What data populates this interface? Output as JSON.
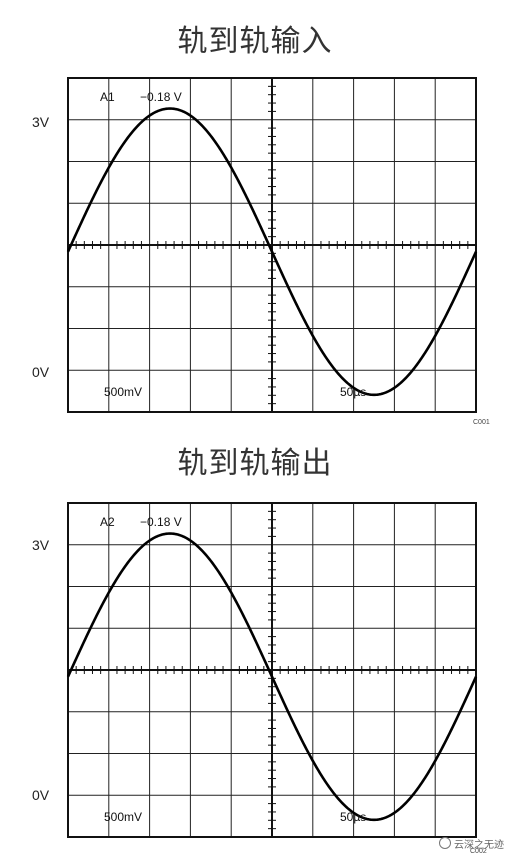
{
  "chart_data": [
    {
      "type": "line",
      "title": "轨到轨输入",
      "channel_label": "A1",
      "offset_label": "−0.18 V",
      "volts_per_div": "500mV",
      "time_per_div": "50µs",
      "y_tick_labels": {
        "top": "3V",
        "bottom": "0V"
      },
      "figure_code": "C001",
      "xlim": [
        0,
        500
      ],
      "ylim": [
        -0.18,
        3.32
      ],
      "grid": true,
      "series": [
        {
          "waveform": "sine",
          "x_start": 0,
          "x_end": 500,
          "y_min": 0,
          "y_max": 3.0,
          "period": 500,
          "phase_deg": 0
        }
      ]
    },
    {
      "type": "line",
      "title": "轨到轨输出",
      "channel_label": "A2",
      "offset_label": "−0.18 V",
      "volts_per_div": "500mV",
      "time_per_div": "50µs",
      "y_tick_labels": {
        "top": "3V",
        "bottom": "0V"
      },
      "figure_code": "C002",
      "xlim": [
        0,
        500
      ],
      "ylim": [
        -0.18,
        3.32
      ],
      "grid": true,
      "series": [
        {
          "waveform": "sine",
          "x_start": 0,
          "x_end": 500,
          "y_min": 0,
          "y_max": 3.0,
          "period": 500,
          "phase_deg": 0
        }
      ]
    }
  ],
  "watermark": {
    "text": "云深之无迹"
  }
}
